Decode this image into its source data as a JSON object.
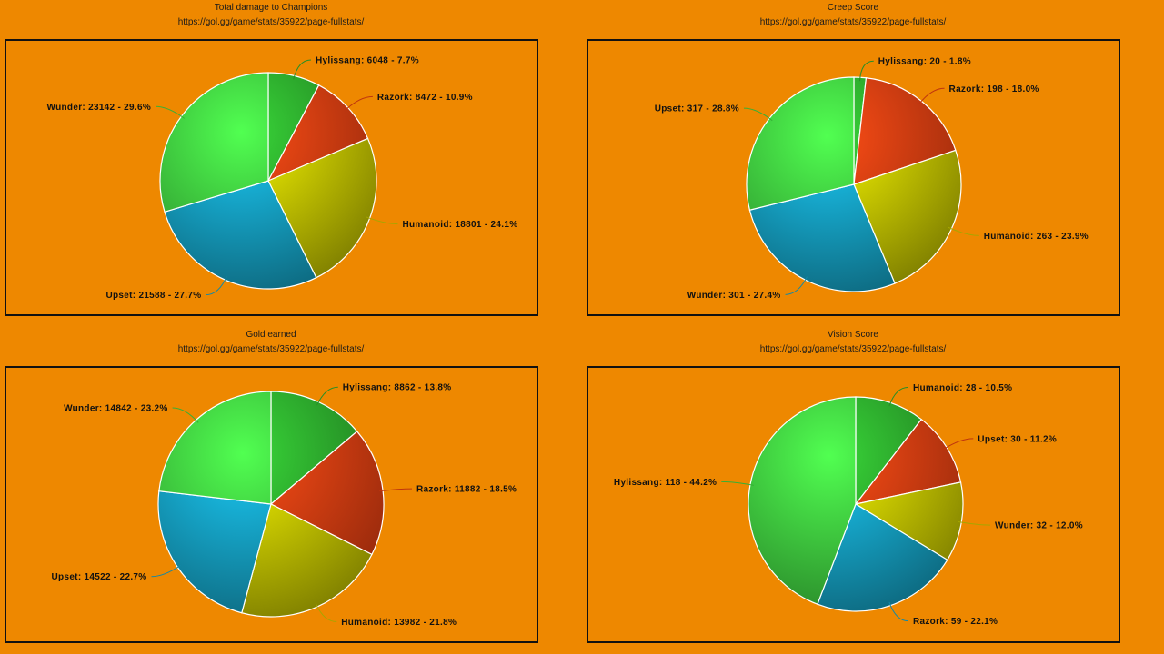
{
  "charts": [
    {
      "title": "Total damage to Champions",
      "subtitle": "https://gol.gg/game/stats/35922/page-fullstats/",
      "chart_data": {
        "type": "pie",
        "title": "Total damage to Champions",
        "slices": [
          {
            "name": "Hylissang",
            "value": 6048,
            "percent": "7.7%",
            "color": "#2aa02a"
          },
          {
            "name": "Razork",
            "value": 8472,
            "percent": "10.9%",
            "color": "#d43a10"
          },
          {
            "name": "Humanoid",
            "value": 18801,
            "percent": "24.1%",
            "color": "#b8b800"
          },
          {
            "name": "Upset",
            "value": 21588,
            "percent": "27.7%",
            "color": "#1497b8"
          },
          {
            "name": "Wunder",
            "value": 23142,
            "percent": "29.6%",
            "color": "#3cc43c"
          }
        ],
        "labels": [
          "Hylissang: 6048 - 7.7%",
          "Razork: 8472 - 10.9%",
          "Humanoid: 18801 - 24.1%",
          "Upset: 21588 - 27.7%",
          "Wunder: 23142 - 29.6%"
        ]
      }
    },
    {
      "title": "Creep Score",
      "subtitle": "https://gol.gg/game/stats/35922/page-fullstats/",
      "chart_data": {
        "type": "pie",
        "title": "Creep Score",
        "slices": [
          {
            "name": "Hylissang",
            "value": 20,
            "percent": "1.8%",
            "color": "#2aa02a"
          },
          {
            "name": "Razork",
            "value": 198,
            "percent": "18.0%",
            "color": "#d43a10"
          },
          {
            "name": "Humanoid",
            "value": 263,
            "percent": "23.9%",
            "color": "#b8b800"
          },
          {
            "name": "Wunder",
            "value": 301,
            "percent": "27.4%",
            "color": "#1497b8"
          },
          {
            "name": "Upset",
            "value": 317,
            "percent": "28.8%",
            "color": "#3cc43c"
          }
        ],
        "labels": [
          "Hylissang: 20 - 1.8%",
          "Razork: 198 - 18.0%",
          "Humanoid: 263 - 23.9%",
          "Wunder: 301 - 27.4%",
          "Upset: 317 - 28.8%"
        ]
      }
    },
    {
      "title": "Gold earned",
      "subtitle": "https://gol.gg/game/stats/35922/page-fullstats/",
      "chart_data": {
        "type": "pie",
        "title": "Gold earned",
        "slices": [
          {
            "name": "Hylissang",
            "value": 8862,
            "percent": "13.8%",
            "color": "#2aa02a"
          },
          {
            "name": "Razork",
            "value": 11882,
            "percent": "18.5%",
            "color": "#d43a10"
          },
          {
            "name": "Humanoid",
            "value": 13982,
            "percent": "21.8%",
            "color": "#b8b800"
          },
          {
            "name": "Upset",
            "value": 14522,
            "percent": "22.7%",
            "color": "#1497b8"
          },
          {
            "name": "Wunder",
            "value": 14842,
            "percent": "23.2%",
            "color": "#3cc43c"
          }
        ],
        "labels": [
          "Hylissang: 8862 - 13.8%",
          "Razork: 11882 - 18.5%",
          "Humanoid: 13982 - 21.8%",
          "Upset: 14522 - 22.7%",
          "Wunder: 14842 - 23.2%"
        ]
      }
    },
    {
      "title": "Vision Score",
      "subtitle": "https://gol.gg/game/stats/35922/page-fullstats/",
      "chart_data": {
        "type": "pie",
        "title": "Vision Score",
        "slices": [
          {
            "name": "Humanoid",
            "value": 28,
            "percent": "10.5%",
            "color": "#2aa02a"
          },
          {
            "name": "Upset",
            "value": 30,
            "percent": "11.2%",
            "color": "#d43a10"
          },
          {
            "name": "Wunder",
            "value": 32,
            "percent": "12.0%",
            "color": "#b8b800"
          },
          {
            "name": "Razork",
            "value": 59,
            "percent": "22.1%",
            "color": "#1497b8"
          },
          {
            "name": "Hylissang",
            "value": 118,
            "percent": "44.2%",
            "color": "#3cc43c"
          }
        ],
        "labels": [
          "Humanoid: 28 - 10.5%",
          "Upset: 30 - 11.2%",
          "Wunder: 32 - 12.0%",
          "Razork: 59 - 22.1%",
          "Hylissang: 118 - 44.2%"
        ]
      }
    }
  ]
}
